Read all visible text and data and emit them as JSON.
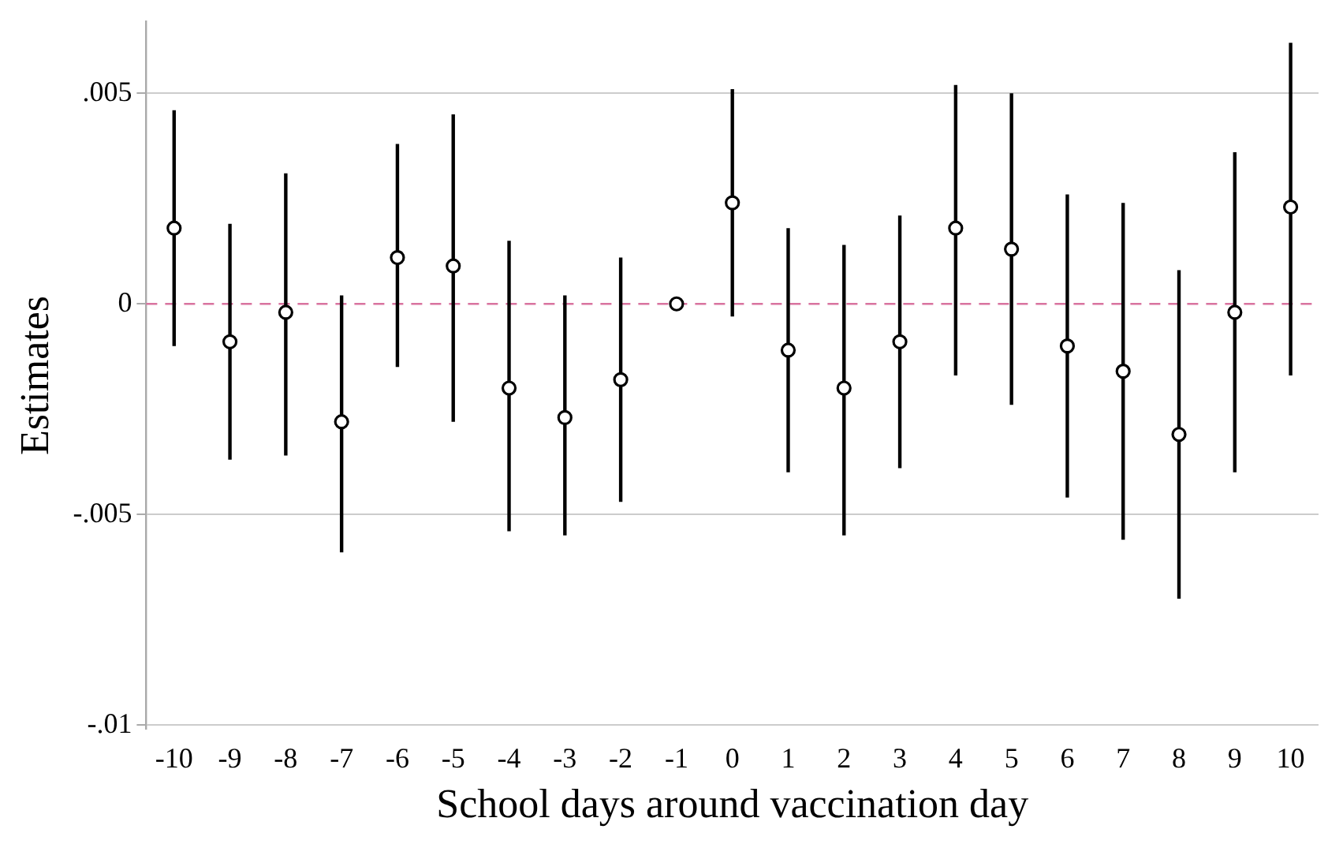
{
  "chart_data": {
    "type": "scatter",
    "xlabel": "School days around vaccination day",
    "ylabel": "Estimates",
    "categories": [
      "-10",
      "-9",
      "-8",
      "-7",
      "-6",
      "-5",
      "-4",
      "-3",
      "-2",
      "-1",
      "0",
      "1",
      "2",
      "3",
      "4",
      "5",
      "6",
      "7",
      "8",
      "9",
      "10"
    ],
    "series": [
      {
        "color": "#000000",
        "values": [
          0.0018,
          -0.0009,
          -0.0002,
          -0.0028,
          0.0011,
          0.0009,
          -0.002,
          -0.0027,
          -0.0018,
          0,
          0.0024,
          -0.0011,
          -0.002,
          -0.0009,
          0.0018,
          0.0013,
          -0.001,
          -0.0016,
          -0.0031,
          -0.0002,
          0.0023
        ],
        "errors": [
          [
            -0.001,
            0.0046
          ],
          [
            -0.0037,
            0.0019
          ],
          [
            -0.0036,
            0.0031
          ],
          [
            -0.0059,
            0.0002
          ],
          [
            -0.0015,
            0.0038
          ],
          [
            -0.0028,
            0.0045
          ],
          [
            -0.0054,
            0.0015
          ],
          [
            -0.0055,
            0.0002
          ],
          [
            -0.0047,
            0.0011
          ],
          null,
          [
            -0.0003,
            0.0051
          ],
          [
            -0.004,
            0.0018
          ],
          [
            -0.0055,
            0.0014
          ],
          [
            -0.0039,
            0.0021
          ],
          [
            -0.0017,
            0.0052
          ],
          [
            -0.0024,
            0.005
          ],
          [
            -0.0046,
            0.0026
          ],
          [
            -0.0056,
            0.0024
          ],
          [
            -0.007,
            0.0008
          ],
          [
            -0.004,
            0.0036
          ],
          [
            -0.0017,
            0.0062
          ]
        ]
      }
    ],
    "ylim": [
      -0.0101,
      0.0067
    ],
    "yticks": [
      {
        "value": 0.005,
        "label": ".005"
      },
      {
        "value": 0,
        "label": "0"
      },
      {
        "value": -0.005,
        "label": "-.005"
      },
      {
        "value": -0.01,
        "label": "-.01"
      }
    ],
    "grid": "y",
    "marker": "circle",
    "legend": false,
    "ref_lines": [
      {
        "axis": "y",
        "value": 0,
        "color": "#d9739f",
        "line_style": "dashed"
      }
    ]
  }
}
